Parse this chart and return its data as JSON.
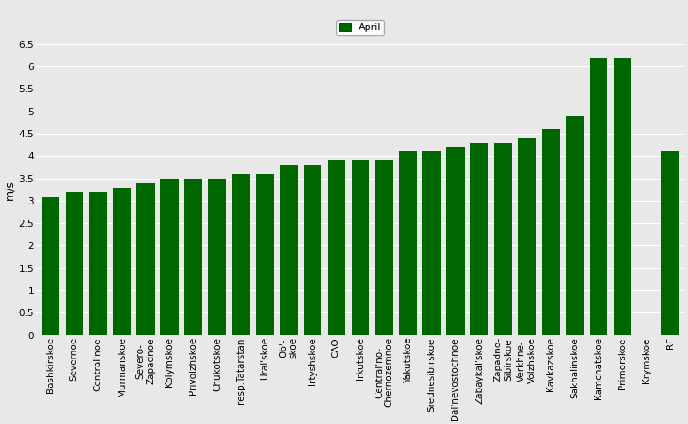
{
  "categories": [
    "Bashkirskoe",
    "Severnoe",
    "Central'noe",
    "Murmanskoe",
    "Severo-\nZapadnoe",
    "Kolymskoe",
    "Privolzhskoe",
    "Chukotskoe",
    "resp.Tatarstan",
    "Ural'skoe",
    "Ob'-\nskoe",
    "Irtyshskoe",
    "CAO",
    "Irkutskoe",
    "Central'no-\nChernozemnoe",
    "Yakutskoe",
    "Srednesibirskoe",
    "Dal'nevostochnoe",
    "Zabaykal'skoe",
    "Zapadno-\nSibirskoe",
    "Verkhne-\nVolzhskoe",
    "Kavkazskoe",
    "Sakhalinskoe",
    "Kamchatskoe",
    "Primorskoe",
    "Krymskoe",
    "RF"
  ],
  "values": [
    3.1,
    3.2,
    3.2,
    3.3,
    3.4,
    3.5,
    3.5,
    3.5,
    3.6,
    3.6,
    3.8,
    3.8,
    3.9,
    3.9,
    3.9,
    4.1,
    4.1,
    4.2,
    4.3,
    4.3,
    4.4,
    4.6,
    4.9,
    6.2,
    6.2,
    0.0,
    4.1
  ],
  "bar_color": "#006600",
  "legend_label": "April",
  "legend_color": "#006600",
  "ylabel": "m/s",
  "ylim": [
    0,
    6.5
  ],
  "yticks": [
    0.0,
    0.5,
    1.0,
    1.5,
    2.0,
    2.5,
    3.0,
    3.5,
    4.0,
    4.5,
    5.0,
    5.5,
    6.0,
    6.5
  ],
  "ytick_labels": [
    "0",
    "0.5",
    "1",
    "1.5",
    "2",
    "2.5",
    "3",
    "3.5",
    "4",
    "4.5",
    "5",
    "5.5",
    "6",
    "6.5"
  ],
  "background_color": "#e8e8e8",
  "plot_area_color": "#ebebeb",
  "tick_fontsize": 7.5,
  "ylabel_fontsize": 9,
  "bar_width": 0.75,
  "legend_fontsize": 8
}
